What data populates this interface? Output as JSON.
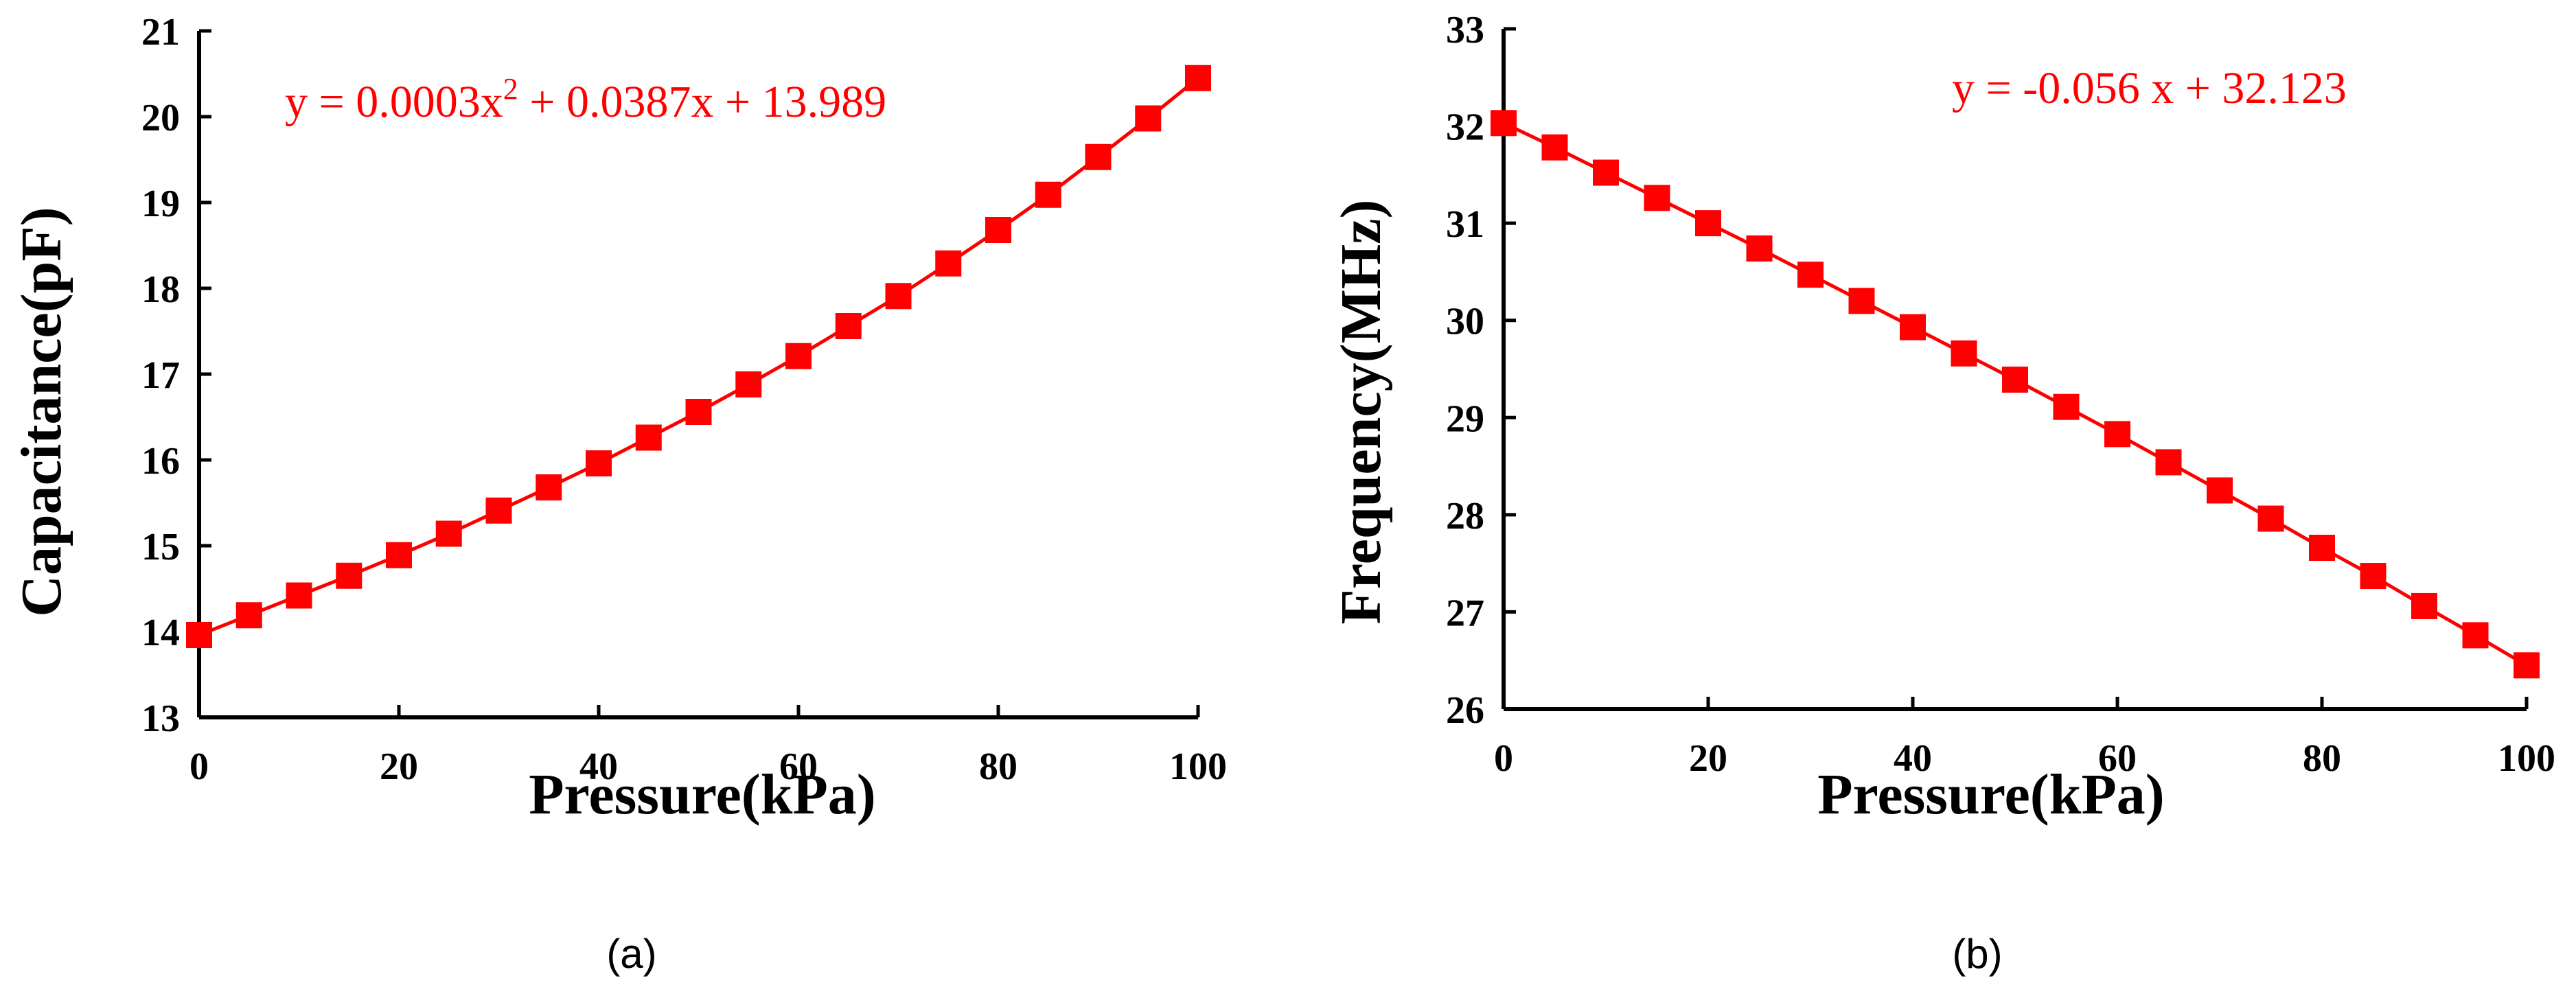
{
  "colors": {
    "series": "#ff0000",
    "axis": "#000000"
  },
  "chart_data": [
    {
      "type": "line",
      "caption": "(a)",
      "xlabel": "Pressure(kPa)",
      "ylabel": "Capacitance(pF)",
      "annotation": "y = 0.0003x2 + 0.0387x + 13.989",
      "annotation_parts": {
        "pre": "y = 0.0003x",
        "sup": "2",
        "post": " + 0.0387x + 13.989"
      },
      "xlim": [
        0,
        100
      ],
      "ylim": [
        13,
        21
      ],
      "xticks": [
        0,
        20,
        40,
        60,
        80,
        100
      ],
      "yticks": [
        13,
        14,
        15,
        16,
        17,
        18,
        19,
        20,
        21
      ],
      "x": [
        0,
        5,
        10,
        15,
        20,
        25,
        30,
        35,
        40,
        45,
        50,
        55,
        60,
        65,
        70,
        75,
        80,
        85,
        90,
        95,
        100
      ],
      "series": [
        {
          "marker": "square",
          "values": [
            13.96,
            14.19,
            14.42,
            14.65,
            14.89,
            15.14,
            15.41,
            15.68,
            15.96,
            16.26,
            16.56,
            16.88,
            17.21,
            17.56,
            17.91,
            18.29,
            18.68,
            19.09,
            19.53,
            19.98,
            20.45
          ]
        }
      ],
      "grid": false
    },
    {
      "type": "line",
      "caption": "(b)",
      "xlabel": "Pressure(kPa)",
      "ylabel": "Frequency(MHz)",
      "annotation": "y = -0.056 x + 32.123",
      "xlim": [
        0,
        100
      ],
      "ylim": [
        26,
        33
      ],
      "xticks": [
        0,
        20,
        40,
        60,
        80,
        100
      ],
      "yticks": [
        26,
        27,
        28,
        29,
        30,
        31,
        32,
        33
      ],
      "x": [
        0,
        5,
        10,
        15,
        20,
        25,
        30,
        35,
        40,
        45,
        50,
        55,
        60,
        65,
        70,
        75,
        80,
        85,
        90,
        95,
        100
      ],
      "series": [
        {
          "marker": "square",
          "values": [
            32.03,
            31.78,
            31.52,
            31.26,
            31.0,
            30.74,
            30.47,
            30.2,
            29.93,
            29.66,
            29.39,
            29.11,
            28.83,
            28.54,
            28.25,
            27.96,
            27.66,
            27.37,
            27.06,
            26.76,
            26.45
          ]
        }
      ],
      "grid": false
    }
  ]
}
